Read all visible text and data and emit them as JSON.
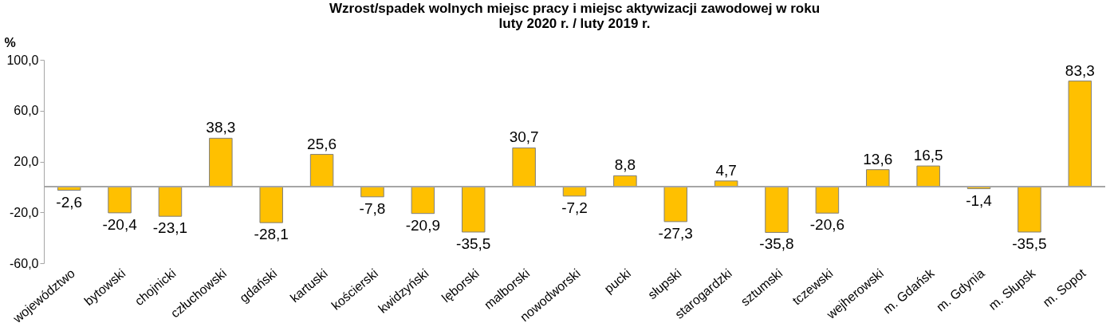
{
  "chart_data": {
    "type": "bar",
    "title": [
      "Wzrost/spadek wolnych miejsc pracy i miejsc aktywizacji zawodowej w roku",
      "luty 2020 r. / luty 2019 r."
    ],
    "ylabel": "%",
    "categories": [
      "województwo",
      "bytowski",
      "chojnicki",
      "człuchowski",
      "gdański",
      "kartuski",
      "kościerski",
      "kwidzyński",
      "lęborski",
      "malborski",
      "nowodworski",
      "pucki",
      "słupski",
      "starogardzki",
      "sztumski",
      "tczewski",
      "wejherowski",
      "m. Gdańsk",
      "m. Gdynia",
      "m. Słupsk",
      "m. Sopot"
    ],
    "values": [
      -2.6,
      -20.4,
      -23.1,
      38.3,
      -28.1,
      25.6,
      -7.8,
      -20.9,
      -35.5,
      30.7,
      -7.2,
      8.8,
      -27.3,
      4.7,
      -35.8,
      -20.6,
      13.6,
      16.5,
      -1.4,
      -35.5,
      83.3
    ],
    "value_labels": [
      "-2,6",
      "-20,4",
      "-23,1",
      "38,3",
      "-28,1",
      "25,6",
      "-7,8",
      "-20,9",
      "-35,5",
      "30,7",
      "-7,2",
      "8,8",
      "-27,3",
      "4,7",
      "-35,8",
      "-20,6",
      "13,6",
      "16,5",
      "-1,4",
      "-35,5",
      "83,3"
    ],
    "color": "#ffc000",
    "ylim": [
      -60,
      100
    ],
    "yticks": [
      {
        "value": -60,
        "label": "-60,0"
      },
      {
        "value": -20,
        "label": "-20,0"
      },
      {
        "value": 20,
        "label": "20,0"
      },
      {
        "value": 60,
        "label": "60,0"
      },
      {
        "value": 100,
        "label": "100,0"
      }
    ],
    "ref_lines": [
      {
        "axis": "y",
        "value": 0,
        "color": "#a6a6a6"
      }
    ],
    "grid": false
  }
}
